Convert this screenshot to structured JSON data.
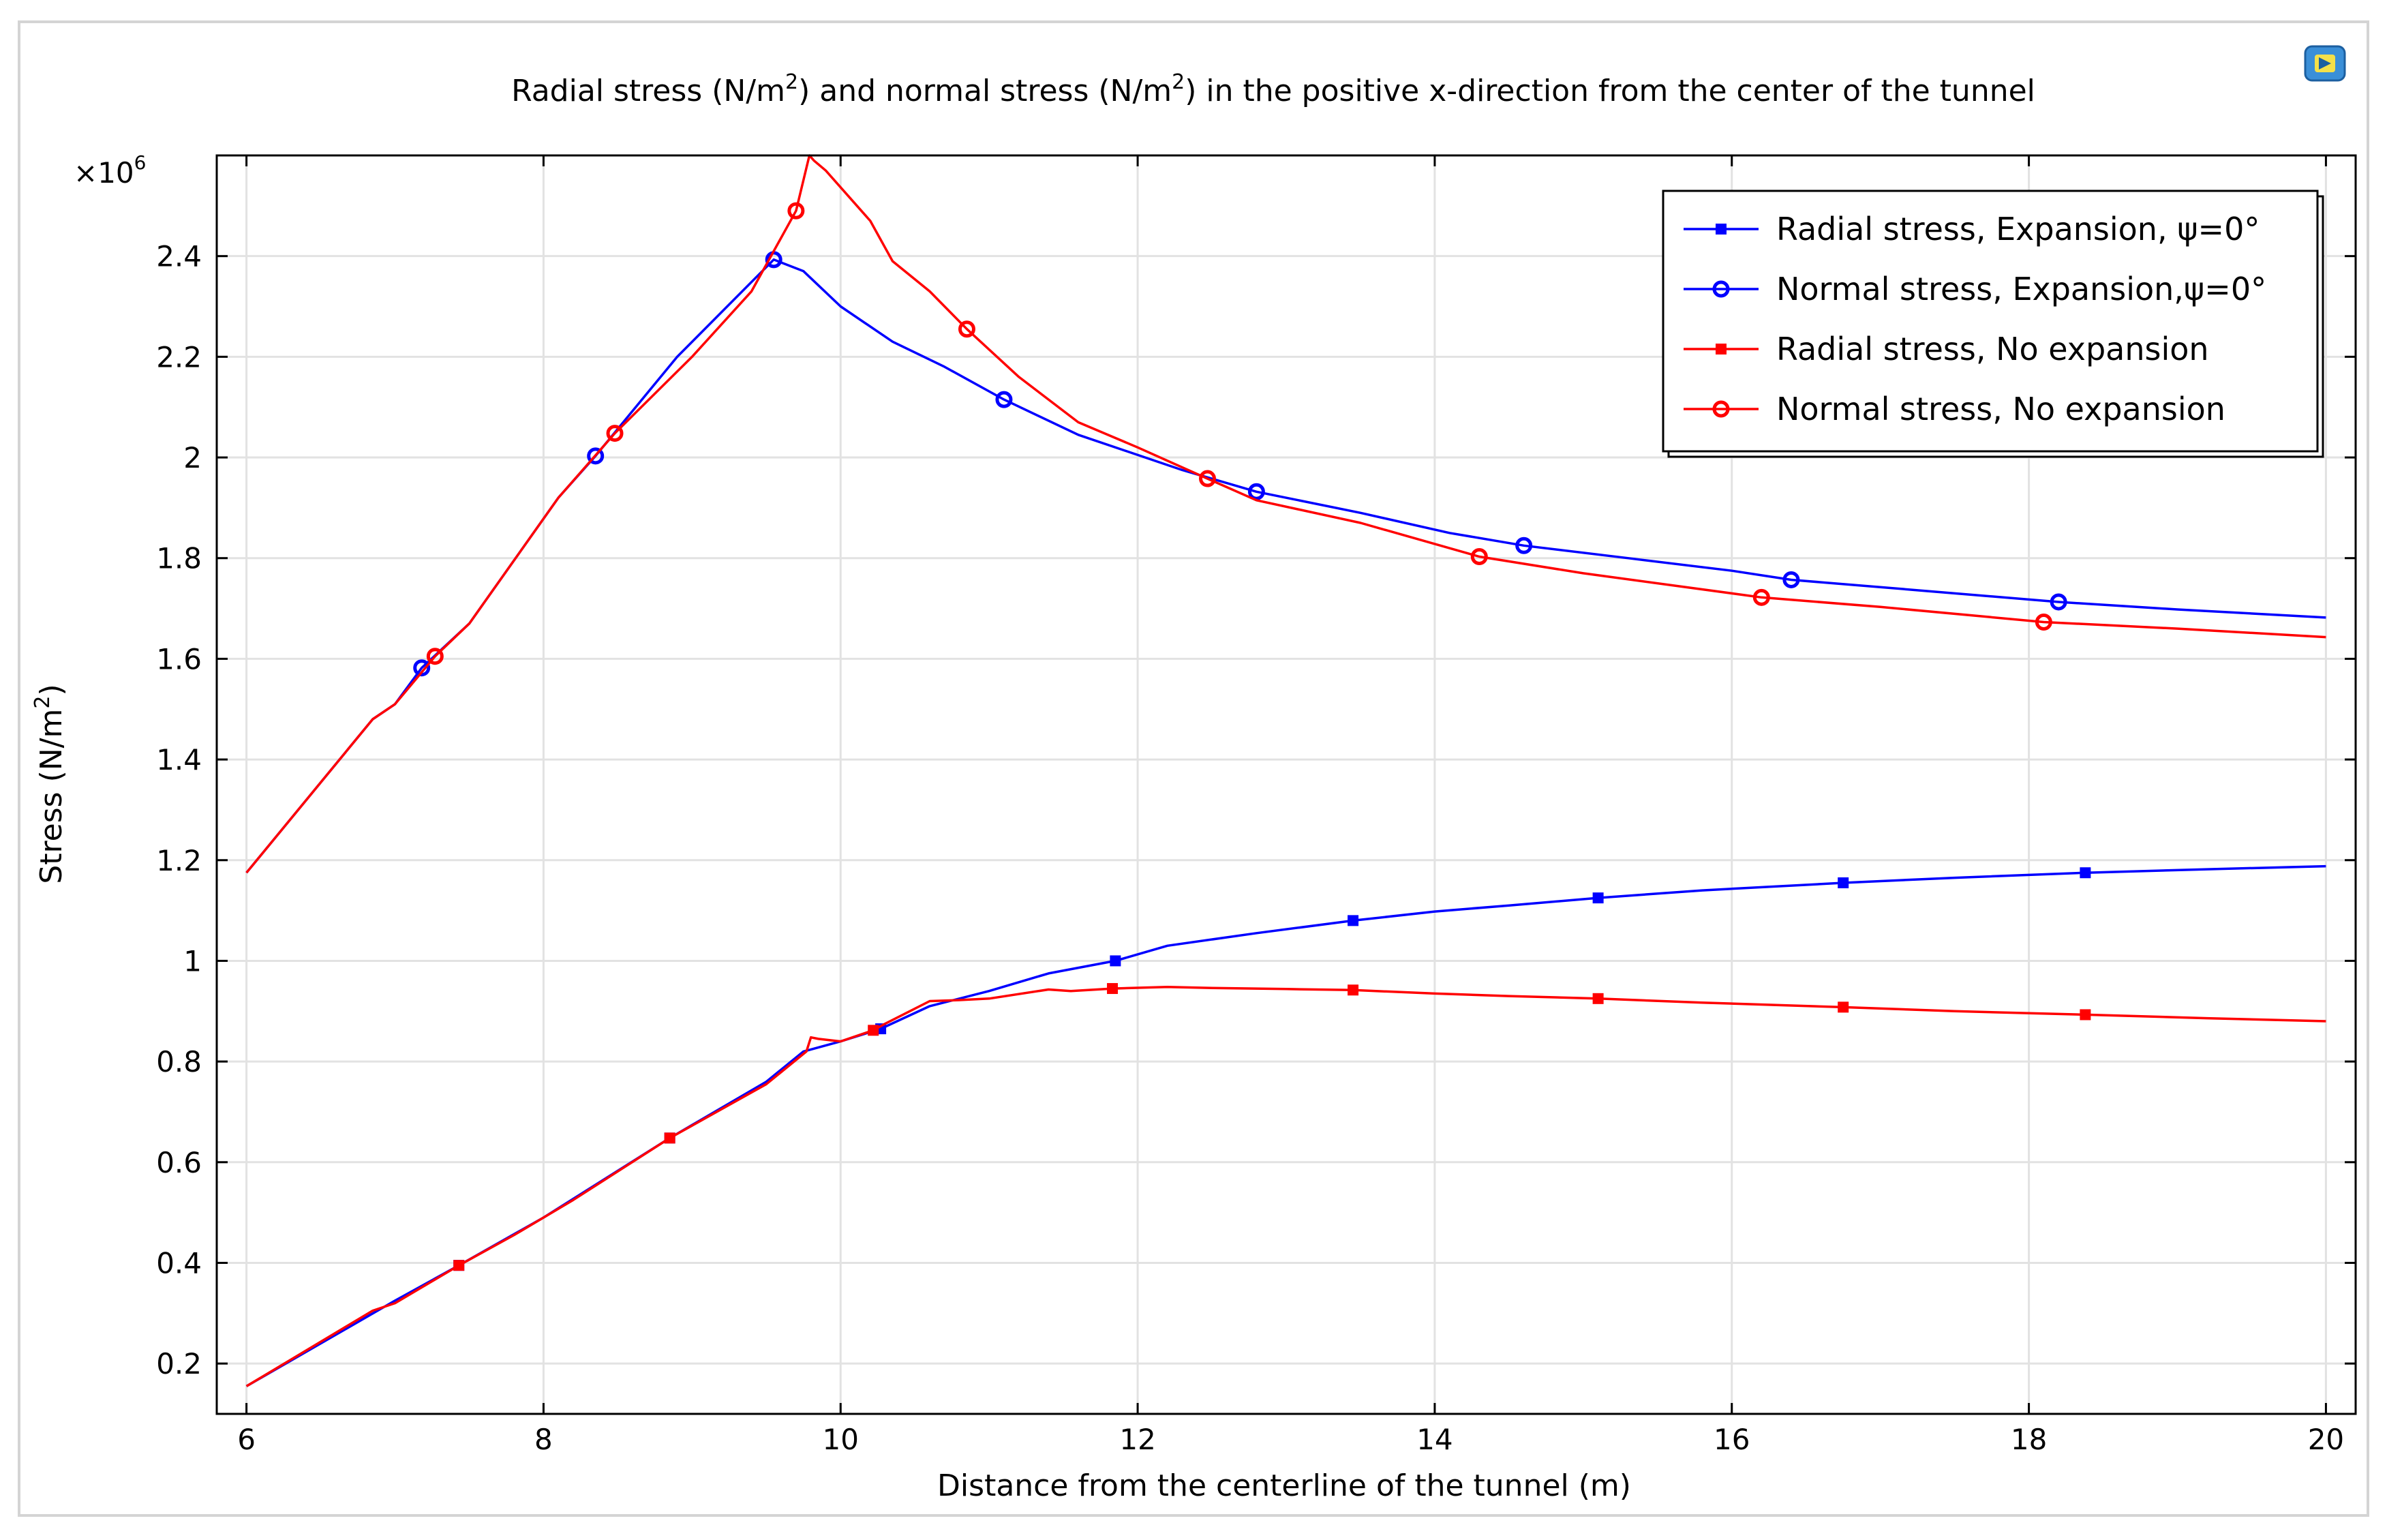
{
  "chart_data": {
    "type": "line",
    "title": {
      "prefix": "Radial stress (N/m",
      "mid": ") and normal stress (N/m",
      "suffix": ") in the positive x-direction from the center of the tunnel",
      "sup": "2"
    },
    "xlabel": "Distance from the centerline of the tunnel (m)",
    "ylabel": {
      "base": "Stress (N/m",
      "sup": "2",
      "close": ")"
    },
    "y_multiplier": {
      "base": "×10",
      "sup": "6"
    },
    "xlim": [
      5.8,
      20.2
    ],
    "ylim": [
      0.1,
      2.6
    ],
    "x_ticks": [
      6,
      8,
      10,
      12,
      14,
      16,
      18,
      20
    ],
    "y_ticks": [
      0.2,
      0.4,
      0.6,
      0.8,
      1,
      1.2,
      1.4,
      1.6,
      1.8,
      2,
      2.2,
      2.4
    ],
    "grid": true,
    "legend_position": "top-right",
    "series": [
      {
        "name": "Radial stress, Expansion, ψ=0°",
        "color": "#0000ff",
        "marker": "square",
        "x": [
          6,
          7.0,
          7.43,
          8,
          8.85,
          9.5,
          9.75,
          10.0,
          10.27,
          10.6,
          11.0,
          11.4,
          11.85,
          12.2,
          12.8,
          13.45,
          14.0,
          14.5,
          15.1,
          15.8,
          16.75,
          17.5,
          18.38,
          19.2,
          20
        ],
        "y": [
          0.155,
          0.325,
          0.395,
          0.49,
          0.648,
          0.76,
          0.82,
          0.84,
          0.865,
          0.91,
          0.94,
          0.975,
          1.0,
          1.03,
          1.055,
          1.08,
          1.098,
          1.11,
          1.125,
          1.14,
          1.155,
          1.165,
          1.175,
          1.182,
          1.188
        ],
        "markers_x": [
          7.43,
          8.85,
          10.27,
          11.85,
          13.45,
          15.1,
          16.75,
          18.38
        ],
        "markers_y": [
          0.395,
          0.648,
          0.865,
          1.0,
          1.08,
          1.125,
          1.155,
          1.175
        ]
      },
      {
        "name": "Normal stress, Expansion,ψ=0°",
        "color": "#0000ff",
        "marker": "circle",
        "x": [
          6,
          6.85,
          7.0,
          7.18,
          7.5,
          8.1,
          8.35,
          8.9,
          9.55,
          9.75,
          10.0,
          10.35,
          10.7,
          11.1,
          11.6,
          12.3,
          12.8,
          13.5,
          14.1,
          14.6,
          15.3,
          16.0,
          16.4,
          17.3,
          18.2,
          19.0,
          20
        ],
        "y": [
          1.175,
          1.48,
          1.51,
          1.582,
          1.67,
          1.92,
          2.003,
          2.2,
          2.393,
          2.37,
          2.3,
          2.23,
          2.18,
          2.115,
          2.045,
          1.975,
          1.932,
          1.89,
          1.85,
          1.825,
          1.8,
          1.775,
          1.757,
          1.735,
          1.713,
          1.698,
          1.682
        ],
        "markers_x": [
          7.18,
          8.35,
          9.55,
          11.1,
          12.8,
          14.6,
          16.4,
          18.2
        ],
        "markers_y": [
          1.582,
          2.003,
          2.393,
          2.115,
          1.932,
          1.825,
          1.757,
          1.713
        ]
      },
      {
        "name": "Radial stress, No expansion",
        "color": "#ff0000",
        "marker": "square",
        "x": [
          6,
          6.85,
          7.0,
          7.43,
          7.8,
          8.2,
          8.85,
          9.5,
          9.77,
          9.8,
          9.85,
          10.0,
          10.22,
          10.3,
          10.6,
          10.8,
          11.0,
          11.4,
          11.55,
          11.83,
          12.2,
          12.5,
          13.0,
          13.45,
          14.0,
          14.5,
          15.1,
          15.8,
          16.75,
          17.5,
          18.38,
          19.2,
          20
        ],
        "y": [
          0.155,
          0.305,
          0.32,
          0.395,
          0.455,
          0.525,
          0.648,
          0.755,
          0.82,
          0.848,
          0.845,
          0.84,
          0.862,
          0.875,
          0.92,
          0.922,
          0.925,
          0.943,
          0.94,
          0.945,
          0.948,
          0.946,
          0.944,
          0.942,
          0.935,
          0.93,
          0.925,
          0.917,
          0.908,
          0.9,
          0.893,
          0.886,
          0.88
        ],
        "markers_x": [
          7.43,
          8.85,
          10.22,
          11.83,
          13.45,
          15.1,
          16.75,
          18.38
        ],
        "markers_y": [
          0.395,
          0.648,
          0.862,
          0.945,
          0.942,
          0.925,
          0.908,
          0.893
        ]
      },
      {
        "name": "Normal stress, No expansion",
        "color": "#ff0000",
        "marker": "circle",
        "x": [
          6,
          6.85,
          7.0,
          7.27,
          7.5,
          8.1,
          8.48,
          9.0,
          9.4,
          9.7,
          9.79,
          9.82,
          9.9,
          10.2,
          10.35,
          10.6,
          10.85,
          11.2,
          11.6,
          12.0,
          12.47,
          12.8,
          13.5,
          14.3,
          15.0,
          16.2,
          17.0,
          18.1,
          19.0,
          20
        ],
        "y": [
          1.175,
          1.48,
          1.51,
          1.605,
          1.67,
          1.92,
          2.048,
          2.2,
          2.33,
          2.49,
          2.6,
          2.59,
          2.57,
          2.47,
          2.39,
          2.33,
          2.255,
          2.16,
          2.07,
          2.02,
          1.958,
          1.915,
          1.87,
          1.803,
          1.77,
          1.722,
          1.703,
          1.673,
          1.66,
          1.643
        ],
        "markers_x": [
          7.27,
          8.48,
          9.7,
          10.85,
          12.47,
          14.3,
          16.2,
          18.1
        ],
        "markers_y": [
          1.605,
          2.048,
          2.49,
          2.255,
          1.958,
          1.803,
          1.722,
          1.673
        ]
      }
    ]
  }
}
